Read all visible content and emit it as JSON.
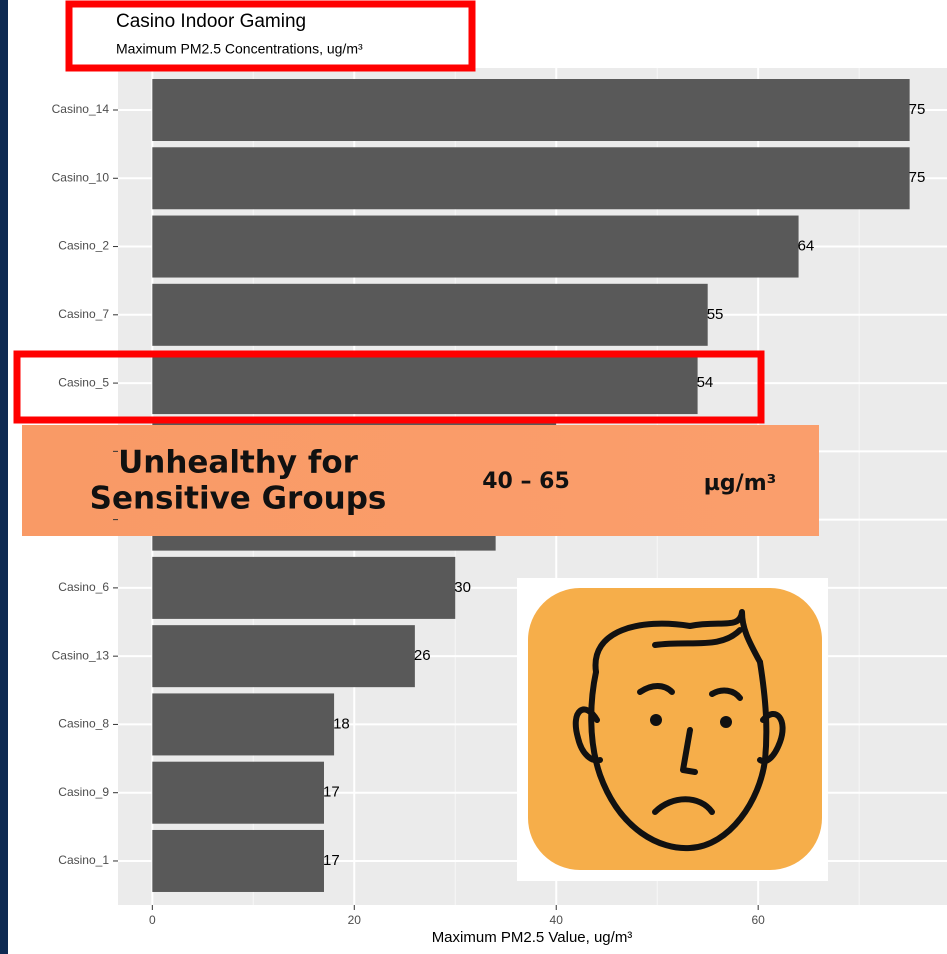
{
  "chart_data": {
    "type": "bar",
    "orientation": "horizontal",
    "title": "Casino Indoor Gaming",
    "subtitle": "Maximum PM2.5 Concentrations, ug/m³",
    "x_label": "Maximum PM2.5 Value, ug/m³",
    "categories": [
      "Casino_14",
      "Casino_10",
      "Casino_2",
      "Casino_7",
      "Casino_5",
      null,
      null,
      "Casino_6",
      "Casino_13",
      "Casino_8",
      "Casino_9",
      "Casino_1"
    ],
    "values": [
      75,
      75,
      64,
      55,
      54,
      40,
      34,
      30,
      26,
      18,
      17,
      17
    ],
    "color": "#595959",
    "xlim": [
      -3.4,
      78.7
    ],
    "xticks": [
      0,
      20,
      40,
      60
    ],
    "xminorticks": [
      10,
      30,
      50,
      70
    ],
    "grid": true,
    "annotations": {
      "banner": [
        "Unhealthy for",
        "Sensitive Groups"
      ],
      "range": "40 – 65",
      "unit": "µg/m³"
    }
  }
}
